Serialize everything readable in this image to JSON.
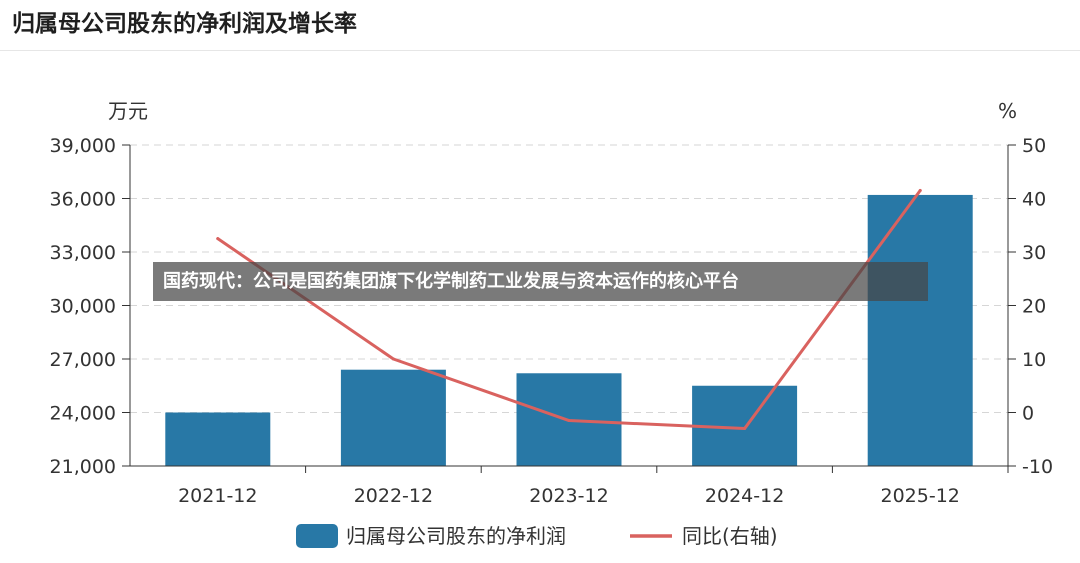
{
  "header": {
    "title": "归属母公司股东的净利润及增长率"
  },
  "overlay": {
    "text": "国药现代：公司是国药集团旗下化学制药工业发展与资本运作的核心平台"
  },
  "chart_data": {
    "type": "bar",
    "title": "归属母公司股东的净利润及增长率",
    "categories": [
      "2021-12",
      "2022-12",
      "2023-12",
      "2024-12",
      "2025-12"
    ],
    "series": [
      {
        "name": "归属母公司股东的净利润",
        "type": "bar",
        "axis": "left",
        "values": [
          24000,
          26400,
          26200,
          25500,
          36200
        ],
        "color": "#2878a6"
      },
      {
        "name": "同比(右轴)",
        "type": "line",
        "axis": "right",
        "values": [
          32.5,
          10,
          -1.5,
          -3,
          41.5
        ],
        "color": "#d9625f"
      }
    ],
    "left_axis": {
      "unit": "万元",
      "ylim": [
        21000,
        39000
      ],
      "ticks": [
        "21,000",
        "24,000",
        "27,000",
        "30,000",
        "33,000",
        "36,000",
        "39,000"
      ]
    },
    "right_axis": {
      "unit": "%",
      "ylim": [
        -10,
        50
      ],
      "ticks": [
        "-10",
        "0",
        "10",
        "20",
        "30",
        "40",
        "50"
      ]
    },
    "grid": true,
    "legend_position": "bottom"
  }
}
